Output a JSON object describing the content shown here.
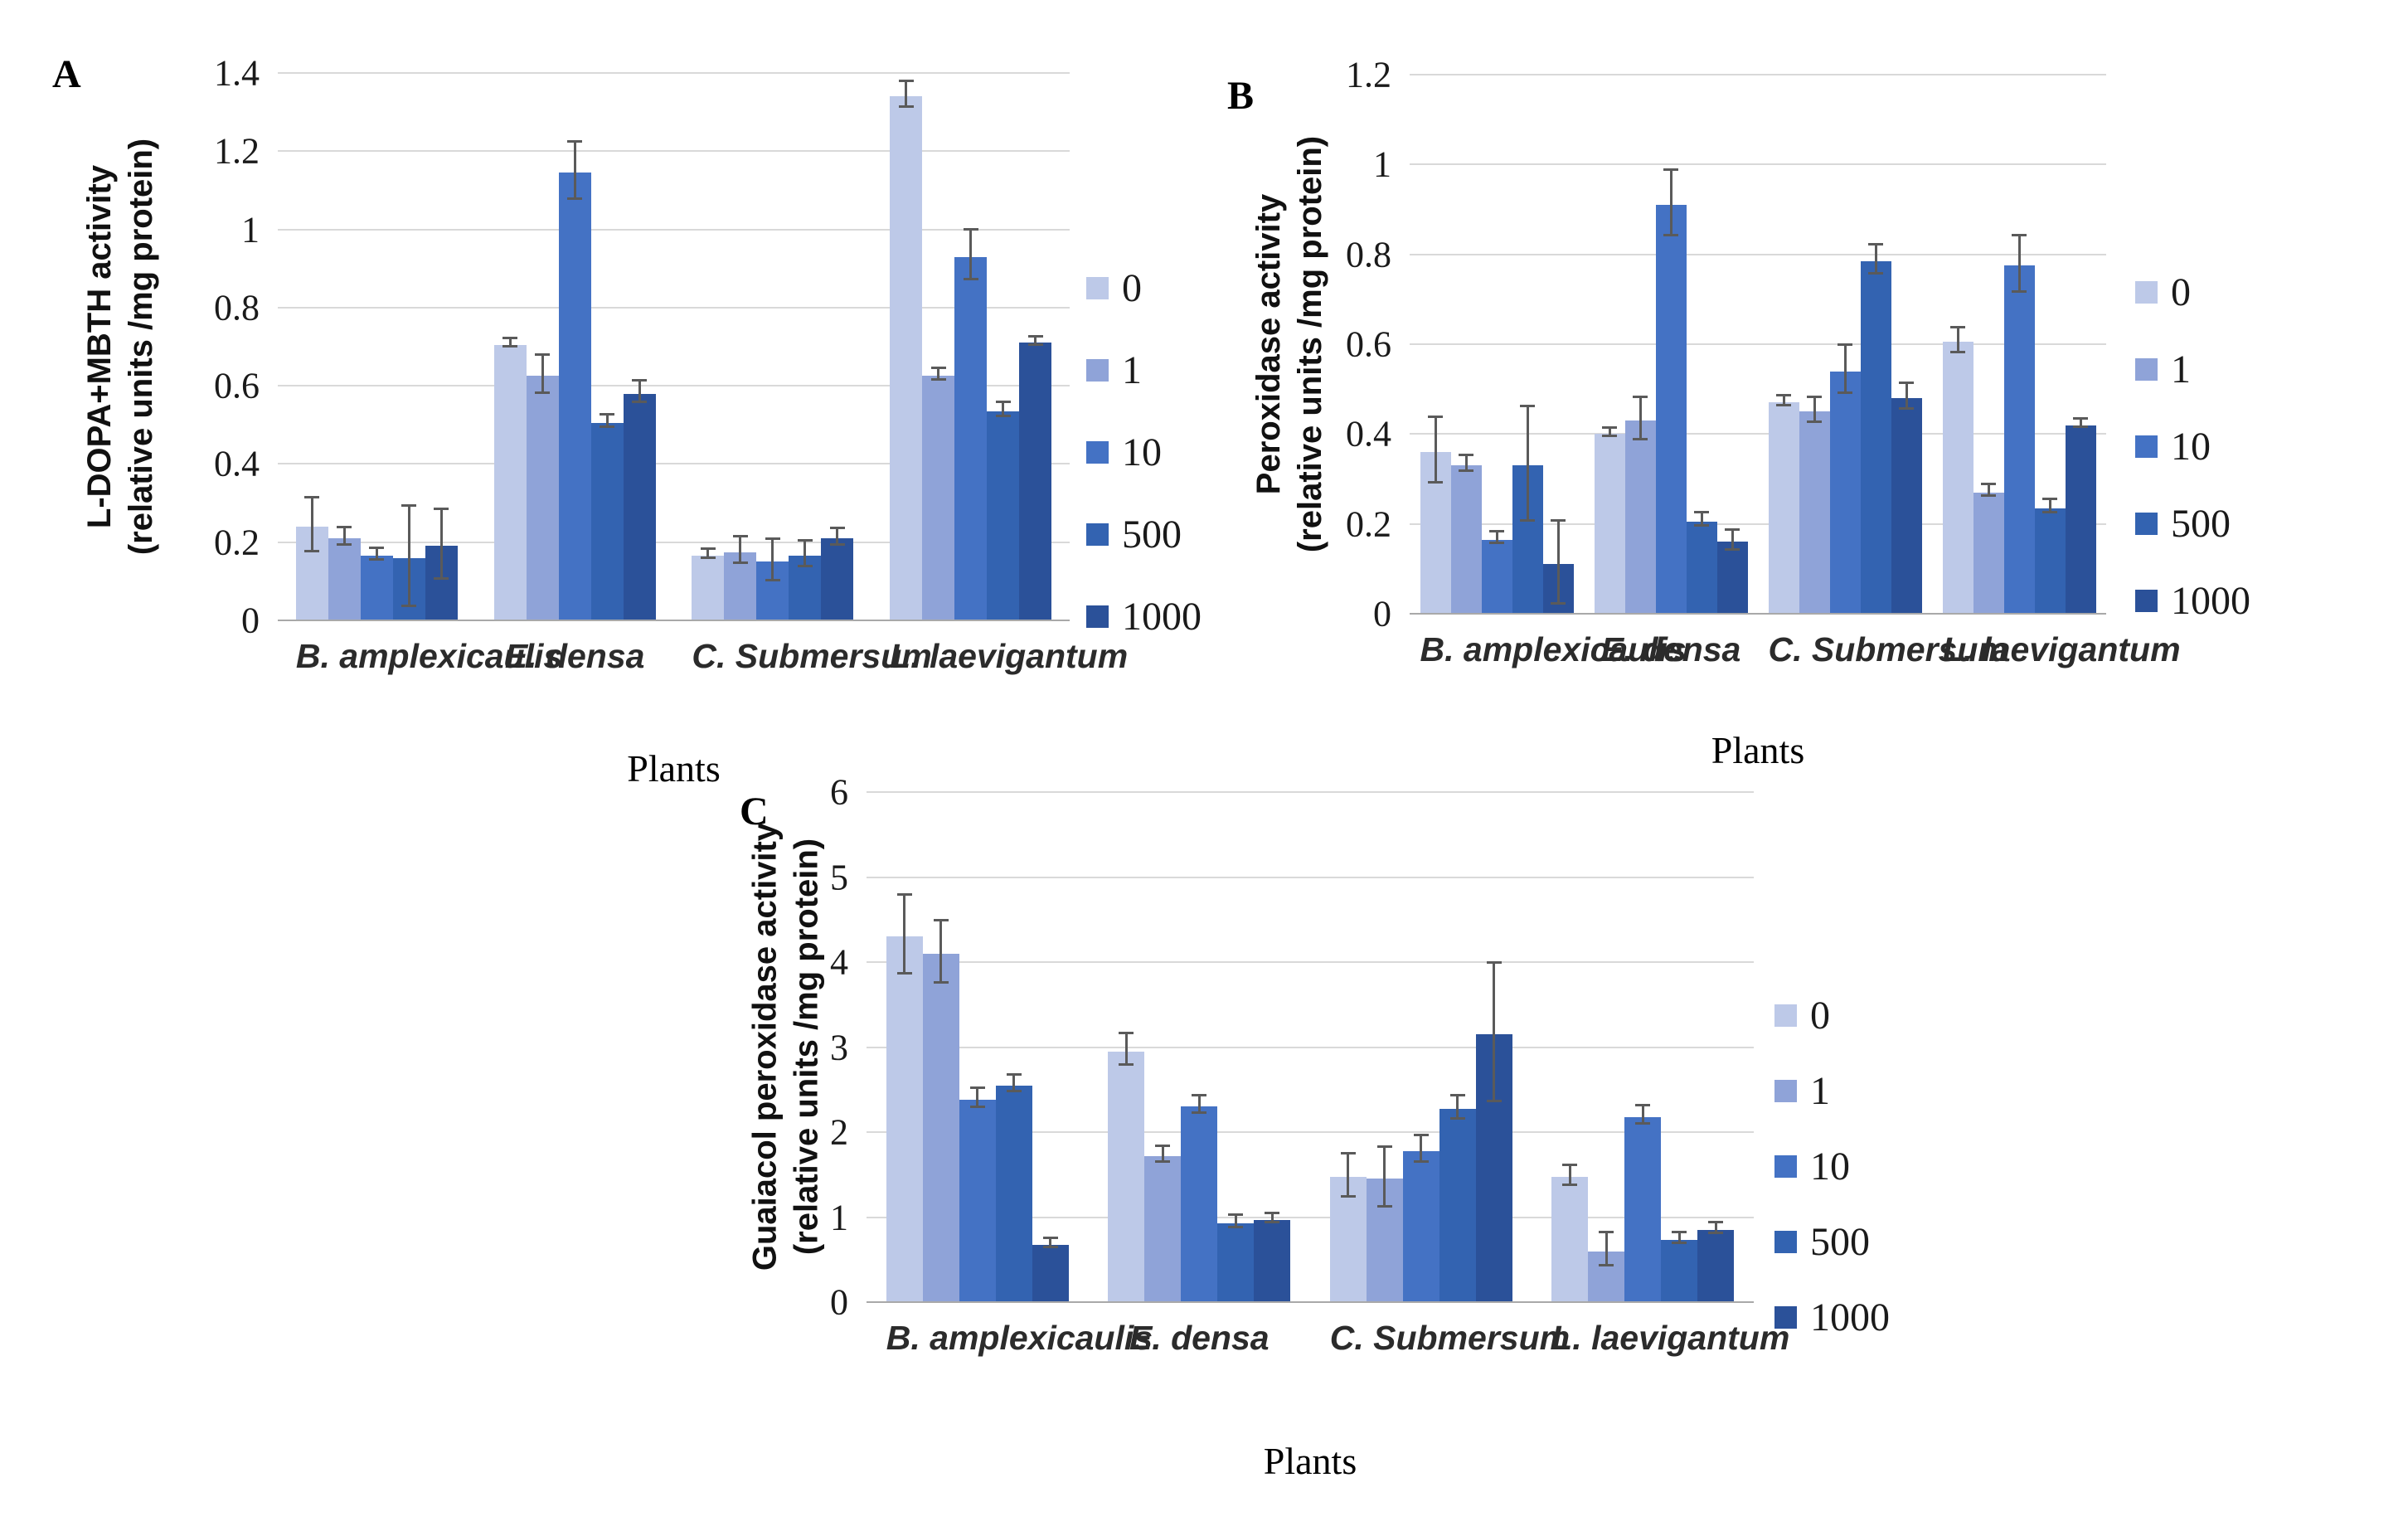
{
  "page": {
    "background": "#ffffff"
  },
  "series_colors": {
    "0": "#bdc9e8",
    "1": "#8fa3d8",
    "10": "#4472c4",
    "500": "#3363b1",
    "1000": "#2b5199"
  },
  "error_bar_color": "#5a5a5a",
  "gridline_color": "#d9d9d9",
  "chart_data": [
    {
      "id": "A",
      "type": "bar",
      "panel_label": "A",
      "ylabel_line1": "L-DOPA+MBTH activity",
      "ylabel_line2": "(relative units /mg protein)",
      "xlabel": "Plants",
      "ylim": [
        0,
        1.4
      ],
      "yticks": [
        "0",
        "0.2",
        "0.4",
        "0.6",
        "0.8",
        "1",
        "1.2",
        "1.4"
      ],
      "grid": true,
      "legend_position": "right",
      "categories": [
        "B. amplexicaulis",
        "E. densa",
        "C. Submersum",
        "L. laevigantum"
      ],
      "series": [
        {
          "name": "0",
          "color": "#bdc9e8",
          "values": [
            0.24,
            0.705,
            0.165,
            1.34
          ],
          "errors": [
            0.065,
            0.008,
            0.008,
            0.03
          ]
        },
        {
          "name": "1",
          "color": "#8fa3d8",
          "values": [
            0.21,
            0.625,
            0.175,
            0.625
          ],
          "errors": [
            0.02,
            0.045,
            0.03,
            0.012
          ]
        },
        {
          "name": "10",
          "color": "#4472c4",
          "values": [
            0.165,
            1.145,
            0.15,
            0.93
          ],
          "errors": [
            0.012,
            0.07,
            0.05,
            0.06
          ]
        },
        {
          "name": "500",
          "color": "#3363b1",
          "values": [
            0.16,
            0.505,
            0.165,
            0.535
          ],
          "errors": [
            0.125,
            0.012,
            0.03,
            0.015
          ]
        },
        {
          "name": "1000",
          "color": "#2b5199",
          "values": [
            0.19,
            0.58,
            0.21,
            0.71
          ],
          "errors": [
            0.085,
            0.025,
            0.018,
            0.008
          ]
        }
      ]
    },
    {
      "id": "B",
      "type": "bar",
      "panel_label": "B",
      "ylabel_line1": "Peroxidase activity",
      "ylabel_line2": "(relative units /mg protein)",
      "xlabel": "Plants",
      "ylim": [
        0,
        1.2
      ],
      "yticks": [
        "0",
        "0.2",
        "0.4",
        "0.6",
        "0.8",
        "1",
        "1.2"
      ],
      "grid": true,
      "legend_position": "right",
      "categories": [
        "B. amplexicaulis",
        "E. densa",
        "C. Submersum",
        "L. laevigantum"
      ],
      "series": [
        {
          "name": "0",
          "color": "#bdc9e8",
          "values": [
            0.36,
            0.4,
            0.47,
            0.605
          ],
          "errors": [
            0.07,
            0.006,
            0.008,
            0.025
          ]
        },
        {
          "name": "1",
          "color": "#8fa3d8",
          "values": [
            0.33,
            0.43,
            0.45,
            0.27
          ],
          "errors": [
            0.015,
            0.045,
            0.025,
            0.01
          ]
        },
        {
          "name": "10",
          "color": "#4472c4",
          "values": [
            0.165,
            0.91,
            0.54,
            0.775
          ],
          "errors": [
            0.01,
            0.07,
            0.05,
            0.06
          ]
        },
        {
          "name": "500",
          "color": "#3363b1",
          "values": [
            0.33,
            0.205,
            0.785,
            0.235
          ],
          "errors": [
            0.125,
            0.012,
            0.03,
            0.012
          ]
        },
        {
          "name": "1000",
          "color": "#2b5199",
          "values": [
            0.11,
            0.16,
            0.48,
            0.42
          ],
          "errors": [
            0.09,
            0.02,
            0.025,
            0.006
          ]
        }
      ]
    },
    {
      "id": "C",
      "type": "bar",
      "panel_label": "C",
      "ylabel_line1": "Guaiacol  peroxidase  activity",
      "ylabel_line2": "(relative units /mg protein)",
      "xlabel": "Plants",
      "ylim": [
        0,
        6
      ],
      "yticks": [
        "0",
        "1",
        "2",
        "3",
        "4",
        "5",
        "6"
      ],
      "grid": true,
      "legend_position": "right",
      "categories": [
        "B. amplexicaulis",
        "E. densa",
        "C. Submersum",
        "L. laevigantum"
      ],
      "series": [
        {
          "name": "0",
          "color": "#bdc9e8",
          "values": [
            4.3,
            2.95,
            1.47,
            1.47
          ],
          "errors": [
            0.45,
            0.17,
            0.24,
            0.1
          ]
        },
        {
          "name": "1",
          "color": "#8fa3d8",
          "values": [
            4.1,
            1.72,
            1.45,
            0.6
          ],
          "errors": [
            0.35,
            0.08,
            0.34,
            0.18
          ]
        },
        {
          "name": "10",
          "color": "#4472c4",
          "values": [
            2.38,
            2.3,
            1.78,
            2.18
          ],
          "errors": [
            0.1,
            0.09,
            0.14,
            0.09
          ]
        },
        {
          "name": "500",
          "color": "#3363b1",
          "values": [
            2.55,
            0.93,
            2.27,
            0.73
          ],
          "errors": [
            0.08,
            0.06,
            0.12,
            0.05
          ]
        },
        {
          "name": "1000",
          "color": "#2b5199",
          "values": [
            0.67,
            0.97,
            3.15,
            0.85
          ],
          "errors": [
            0.04,
            0.04,
            0.8,
            0.05
          ]
        }
      ]
    }
  ]
}
